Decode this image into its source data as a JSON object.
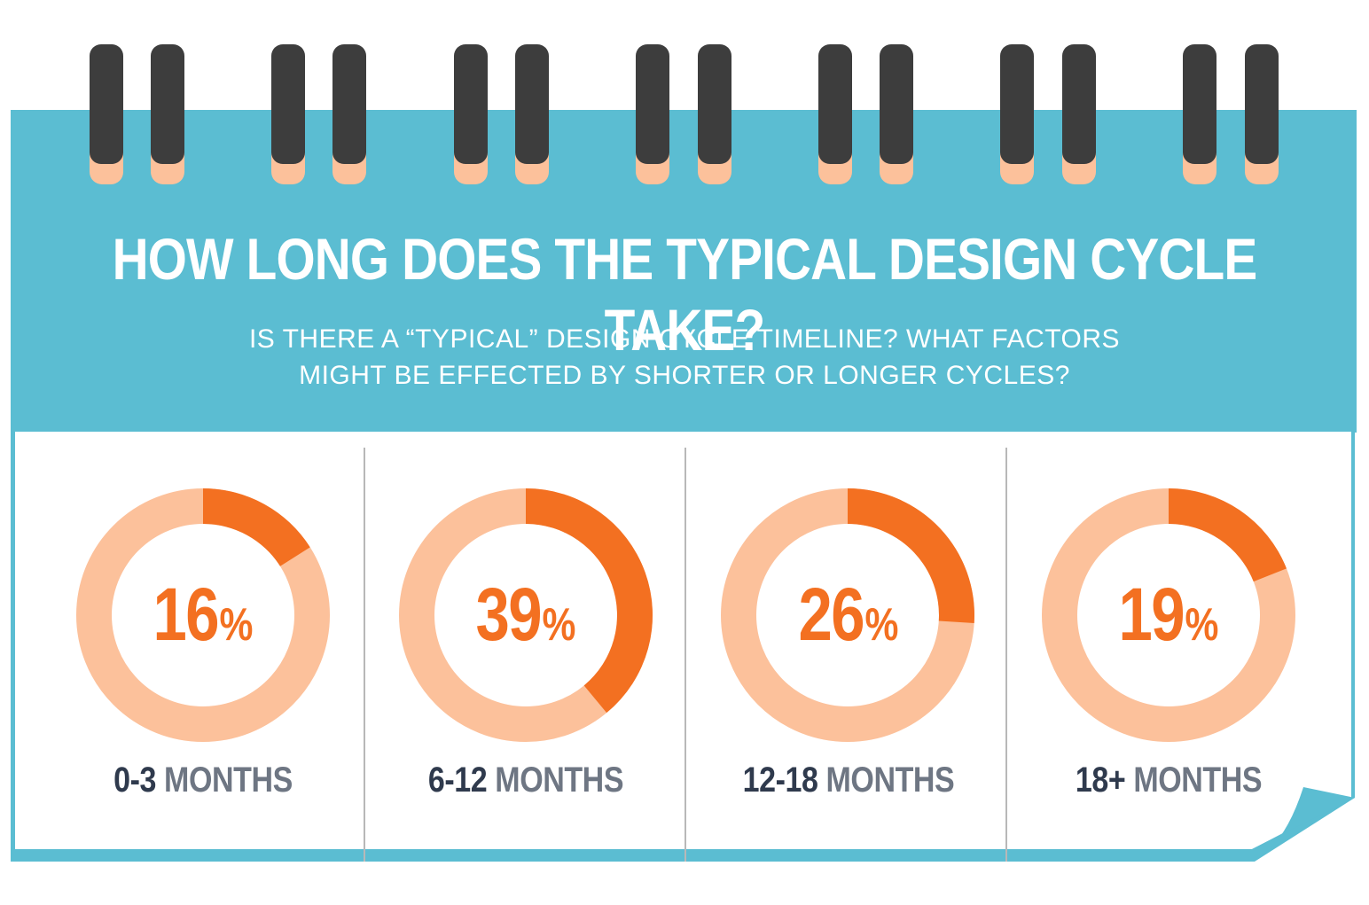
{
  "header": {
    "title": "HOW LONG DOES THE TYPICAL DESIGN CYCLE TAKE?",
    "subtitle_line_1": "IS THERE A “TYPICAL” DESIGN CYCLE TIMELINE? WHAT FACTORS",
    "subtitle_line_2": "MIGHT BE EFFECTED BY SHORTER OR LONGER CYCLES?"
  },
  "colors": {
    "panel_blue": "#5bbdd2",
    "ring_dark_orange": "#f37021",
    "ring_light_orange": "#fcc19b",
    "binder_ring": "#3d3d3d",
    "label_range": "#2f3a4d",
    "label_unit": "#6e7683"
  },
  "chart_data": {
    "type": "pie",
    "title": "HOW LONG DOES THE TYPICAL DESIGN CYCLE TAKE?",
    "categories": [
      "0-3 MONTHS",
      "6-12 MONTHS",
      "12-18 MONTHS",
      "18+ MONTHS"
    ],
    "values": [
      16,
      39,
      26,
      19
    ],
    "items": [
      {
        "range": "0-3",
        "unit": "MONTHS",
        "value": 16,
        "value_text": "16",
        "sign": "%"
      },
      {
        "range": "6-12",
        "unit": "MONTHS",
        "value": 39,
        "value_text": "39",
        "sign": "%"
      },
      {
        "range": "12-18",
        "unit": "MONTHS",
        "value": 26,
        "value_text": "26",
        "sign": "%"
      },
      {
        "range": "18+",
        "unit": "MONTHS",
        "value": 19,
        "value_text": "19",
        "sign": "%"
      }
    ]
  }
}
